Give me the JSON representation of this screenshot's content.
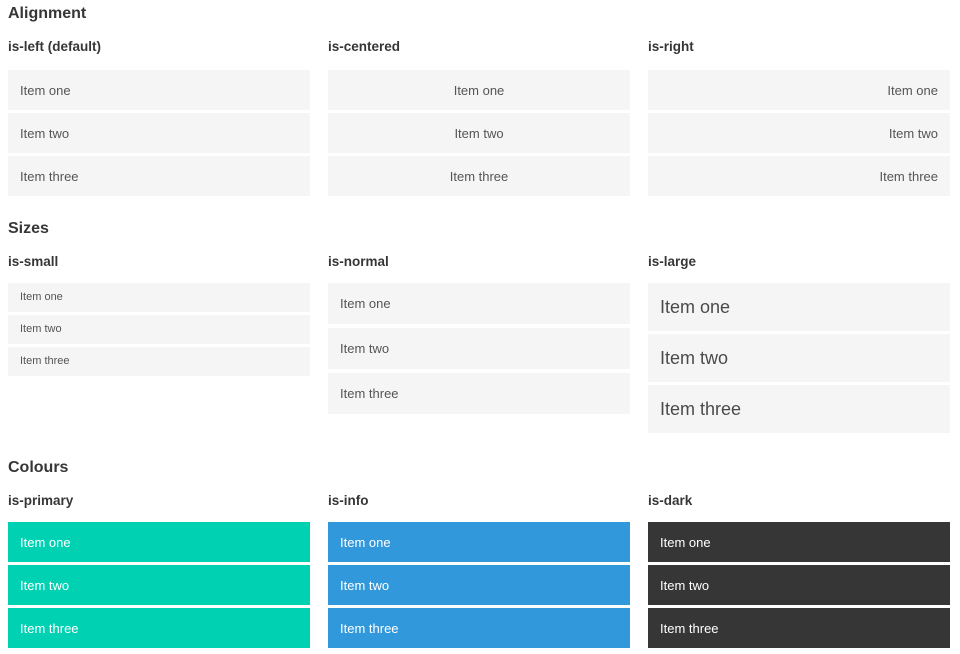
{
  "sections": [
    {
      "title": "Alignment",
      "columns": [
        {
          "label": "is-left (default)",
          "items": [
            "Item one",
            "Item two",
            "Item three"
          ]
        },
        {
          "label": "is-centered",
          "items": [
            "Item one",
            "Item two",
            "Item three"
          ]
        },
        {
          "label": "is-right",
          "items": [
            "Item one",
            "Item two",
            "Item three"
          ]
        }
      ]
    },
    {
      "title": "Sizes",
      "columns": [
        {
          "label": "is-small",
          "items": [
            "Item one",
            "Item two",
            "Item three"
          ]
        },
        {
          "label": "is-normal",
          "items": [
            "Item one",
            "Item two",
            "Item three"
          ]
        },
        {
          "label": "is-large",
          "items": [
            "Item one",
            "Item two",
            "Item three"
          ]
        }
      ]
    },
    {
      "title": "Colours",
      "columns": [
        {
          "label": "is-primary",
          "items": [
            "Item one",
            "Item two",
            "Item three"
          ]
        },
        {
          "label": "is-info",
          "items": [
            "Item one",
            "Item two",
            "Item three"
          ]
        },
        {
          "label": "is-dark",
          "items": [
            "Item one",
            "Item two",
            "Item three"
          ]
        }
      ]
    }
  ],
  "colors": {
    "primary": "#00d1b2",
    "info": "#3298dc",
    "dark": "#363636",
    "item_bg": "#f5f5f5",
    "item_text": "#555555",
    "item_text_on_color": "#ffffff",
    "heading_text": "#363636"
  }
}
